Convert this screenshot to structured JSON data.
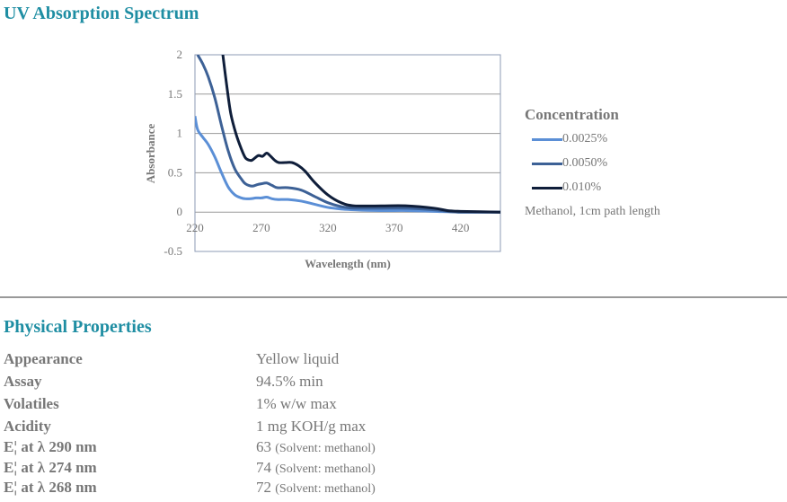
{
  "title": "UV Absorption Spectrum",
  "chart_data": {
    "type": "line",
    "xlabel": "Wavelength (nm)",
    "ylabel": "Absorbance",
    "xlim": [
      220,
      450
    ],
    "ylim": [
      -0.5,
      2
    ],
    "xticks": [
      220,
      270,
      320,
      370,
      420
    ],
    "yticks": [
      -0.5,
      0,
      0.5,
      1,
      1.5,
      2
    ],
    "grid": true,
    "legend_title": "Concentration",
    "legend_position": "right",
    "note": "Methanol, 1cm path length",
    "series": [
      {
        "name": "0.0025%",
        "color": "#5b8fd6",
        "x": [
          220,
          222,
          226,
          230,
          235,
          240,
          245,
          250,
          255,
          258,
          262,
          266,
          270,
          274,
          278,
          282,
          290,
          300,
          310,
          320,
          330,
          340,
          360,
          380,
          400,
          420,
          450
        ],
        "y": [
          1.22,
          1.05,
          0.95,
          0.86,
          0.7,
          0.5,
          0.32,
          0.22,
          0.18,
          0.17,
          0.17,
          0.18,
          0.18,
          0.19,
          0.17,
          0.16,
          0.16,
          0.14,
          0.1,
          0.06,
          0.04,
          0.03,
          0.02,
          0.02,
          0.01,
          0.0,
          0.0
        ]
      },
      {
        "name": "0.0050%",
        "color": "#3d6196",
        "x": [
          222,
          226,
          230,
          235,
          240,
          245,
          250,
          255,
          258,
          263,
          267,
          270,
          274,
          278,
          282,
          290,
          300,
          310,
          320,
          330,
          340,
          360,
          380,
          400,
          410,
          420,
          450
        ],
        "y": [
          2.0,
          1.88,
          1.72,
          1.45,
          1.1,
          0.78,
          0.55,
          0.42,
          0.36,
          0.33,
          0.35,
          0.36,
          0.37,
          0.34,
          0.31,
          0.31,
          0.28,
          0.2,
          0.12,
          0.07,
          0.05,
          0.05,
          0.05,
          0.03,
          0.01,
          0.0,
          0.0
        ]
      },
      {
        "name": "0.010%",
        "color": "#0f1e3a",
        "x": [
          241,
          244,
          247,
          251,
          255,
          258,
          261,
          263,
          266,
          268,
          271,
          274,
          277,
          280,
          283,
          288,
          293,
          298,
          303,
          310,
          320,
          330,
          340,
          360,
          380,
          400,
          410,
          420,
          450
        ],
        "y": [
          2.0,
          1.6,
          1.25,
          0.99,
          0.8,
          0.69,
          0.66,
          0.66,
          0.7,
          0.72,
          0.71,
          0.75,
          0.71,
          0.66,
          0.63,
          0.63,
          0.63,
          0.59,
          0.52,
          0.38,
          0.22,
          0.12,
          0.08,
          0.08,
          0.08,
          0.05,
          0.02,
          0.01,
          0.0
        ]
      }
    ]
  },
  "properties_heading": "Physical Properties",
  "properties": [
    {
      "label": "Appearance",
      "value": "Yellow liquid",
      "note": ""
    },
    {
      "label": "Assay",
      "value": "94.5% min",
      "note": ""
    },
    {
      "label": "Volatiles",
      "value": "1% w/w max",
      "note": ""
    },
    {
      "label": "Acidity",
      "value": "1 mg KOH/g max",
      "note": ""
    },
    {
      "label": "E¦ at λ 290 nm",
      "value": "63",
      "note": "(Solvent: methanol)"
    },
    {
      "label": "E¦ at λ 274 nm",
      "value": "74",
      "note": "(Solvent: methanol)"
    },
    {
      "label": "E¦ at λ 268 nm",
      "value": "72",
      "note": "(Solvent: methanol)"
    }
  ]
}
